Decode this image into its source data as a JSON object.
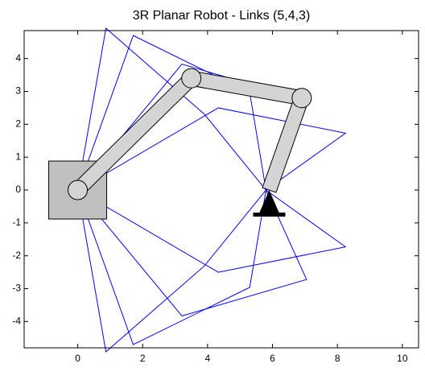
{
  "chart_data": {
    "type": "line",
    "title": "3R Planar Robot - Links (5,4,3)",
    "xlim": [
      -1.65,
      10.5
    ],
    "ylim": [
      -4.8,
      4.85
    ],
    "xticks": [
      0,
      2,
      4,
      6,
      8,
      10
    ],
    "yticks": [
      -4,
      -3,
      -2,
      -1,
      0,
      1,
      2,
      3,
      4
    ],
    "series": [
      {
        "color": "#0000ff",
        "x": [
          0,
          4.33,
          8.25,
          5.8
        ],
        "y": [
          0,
          2.5,
          1.73,
          0
        ]
      },
      {
        "color": "#0000ff",
        "x": [
          0,
          4.33,
          8.25,
          5.8
        ],
        "y": [
          0,
          -2.5,
          -1.73,
          0
        ]
      },
      {
        "color": "#0000ff",
        "x": [
          0,
          3.21,
          7.05,
          5.8
        ],
        "y": [
          0,
          3.83,
          2.72,
          0
        ]
      },
      {
        "color": "#0000ff",
        "x": [
          0,
          3.21,
          7.05,
          5.8
        ],
        "y": [
          0,
          -3.83,
          -2.72,
          0
        ]
      },
      {
        "color": "#0000ff",
        "x": [
          0,
          1.71,
          5.3,
          5.8
        ],
        "y": [
          0,
          4.7,
          2.96,
          0
        ]
      },
      {
        "color": "#0000ff",
        "x": [
          0,
          1.71,
          5.3,
          5.8
        ],
        "y": [
          0,
          -4.7,
          -2.96,
          0
        ]
      },
      {
        "color": "#0000ff",
        "x": [
          0,
          0.87,
          3.9,
          5.8
        ],
        "y": [
          0,
          4.92,
          2.31,
          0
        ]
      },
      {
        "color": "#0000ff",
        "x": [
          0,
          0.87,
          3.9,
          5.8
        ],
        "y": [
          0,
          -4.92,
          -2.31,
          0
        ]
      }
    ],
    "links": {
      "color": "#d4d4d4",
      "x": [
        0,
        3.5,
        6.9,
        5.9
      ],
      "y": [
        0,
        3.4,
        2.8,
        0
      ]
    }
  }
}
